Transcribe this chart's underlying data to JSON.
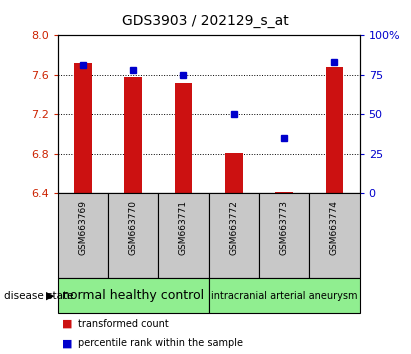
{
  "title": "GDS3903 / 202129_s_at",
  "samples": [
    "GSM663769",
    "GSM663770",
    "GSM663771",
    "GSM663772",
    "GSM663773",
    "GSM663774"
  ],
  "bar_values": [
    7.72,
    7.58,
    7.52,
    6.81,
    6.41,
    7.68
  ],
  "percentile_values": [
    81,
    78,
    75,
    50,
    35,
    83
  ],
  "y_min": 6.4,
  "y_max": 8.0,
  "y_ticks": [
    6.4,
    6.8,
    7.2,
    7.6,
    8.0
  ],
  "y2_ticks": [
    0,
    25,
    50,
    75,
    100
  ],
  "y2_labels": [
    "0",
    "25",
    "50",
    "75",
    "100%"
  ],
  "bar_color": "#cc1111",
  "dot_color": "#0000cc",
  "bar_bottom": 6.4,
  "groups": [
    {
      "label": "normal healthy control",
      "start": 0,
      "end": 3,
      "color": "#90ee90",
      "fontsize": 9
    },
    {
      "label": "intracranial arterial aneurysm",
      "start": 3,
      "end": 6,
      "color": "#90ee90",
      "fontsize": 7
    }
  ],
  "group_bg_color": "#c8c8c8",
  "left_label_color": "#cc2200",
  "right_label_color": "#0000cc",
  "legend_bar_label": "transformed count",
  "legend_dot_label": "percentile rank within the sample",
  "disease_state_label": "disease state",
  "title_fontsize": 10,
  "tick_fontsize": 8,
  "sample_fontsize": 6.5
}
